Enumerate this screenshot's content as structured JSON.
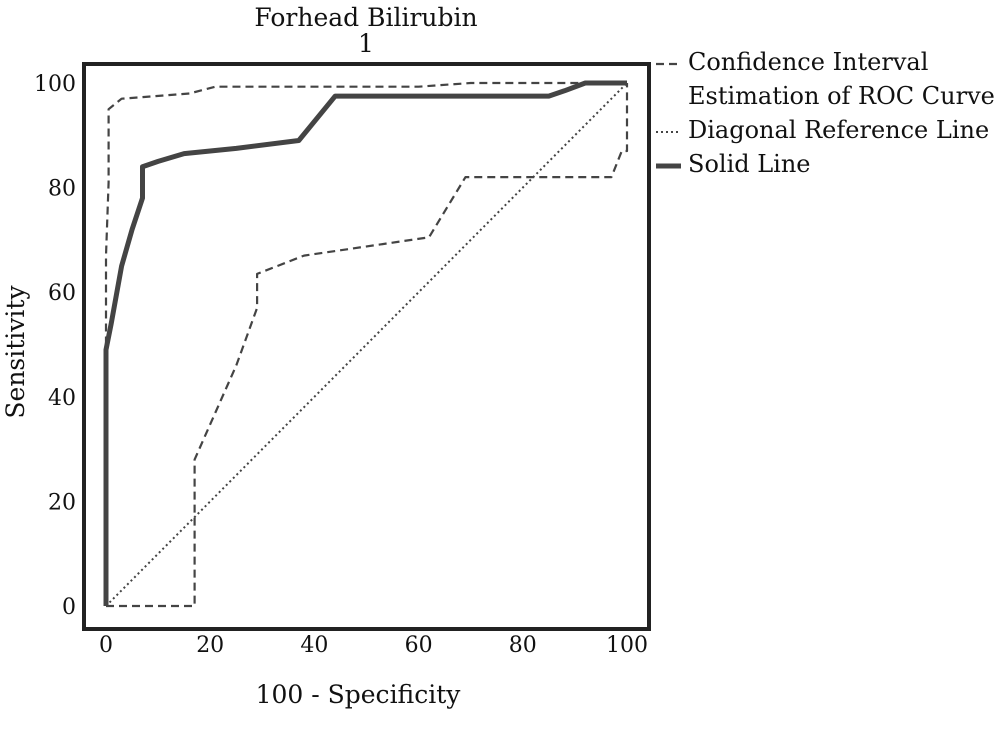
{
  "chart_data": {
    "type": "line",
    "title": "Forhead Bilirubin",
    "subtitle": "1",
    "xlabel": "100 - Specificity",
    "ylabel": "Sensitivity",
    "xlim": [
      0,
      100
    ],
    "ylim": [
      0,
      100
    ],
    "x_ticks": [
      0,
      20,
      40,
      60,
      80,
      100
    ],
    "y_ticks": [
      0,
      20,
      40,
      60,
      80,
      100
    ],
    "x_tick_labels": [
      "0",
      "20",
      "40",
      "60",
      "80",
      "100"
    ],
    "y_tick_labels": [
      "0",
      "20",
      "40",
      "60",
      "80",
      "100"
    ],
    "grid": false,
    "legend_position": "right",
    "series": [
      {
        "name": "Solid Line",
        "style": "solid",
        "points": [
          [
            0,
            0
          ],
          [
            0,
            49
          ],
          [
            1,
            54
          ],
          [
            3,
            65
          ],
          [
            5,
            72
          ],
          [
            7,
            78
          ],
          [
            7,
            84
          ],
          [
            10,
            85
          ],
          [
            15,
            86.5
          ],
          [
            25,
            87.5
          ],
          [
            37,
            89
          ],
          [
            44,
            97.5
          ],
          [
            70,
            97.5
          ],
          [
            85,
            97.5
          ],
          [
            88,
            98.5
          ],
          [
            92,
            100
          ],
          [
            100,
            100
          ]
        ]
      },
      {
        "name": "Confidence Interval Estimation of ROC Curve",
        "style": "dashed",
        "points": [
          [
            0,
            50
          ],
          [
            0,
            67
          ],
          [
            0.5,
            81
          ],
          [
            0.5,
            95
          ],
          [
            3,
            97
          ],
          [
            16,
            98
          ],
          [
            21,
            99.3
          ],
          [
            60,
            99.3
          ],
          [
            70,
            100
          ],
          [
            100,
            100
          ]
        ]
      },
      {
        "name": "Confidence Interval Estimation of ROC Curve",
        "style": "dashed",
        "points": [
          [
            0,
            0
          ],
          [
            17,
            0
          ],
          [
            17,
            28
          ],
          [
            21,
            37
          ],
          [
            25,
            46
          ],
          [
            29,
            57
          ],
          [
            29,
            63.5
          ],
          [
            38,
            67
          ],
          [
            62,
            70.5
          ],
          [
            69,
            82
          ],
          [
            97,
            82
          ],
          [
            99,
            87
          ],
          [
            100,
            87
          ],
          [
            100,
            100
          ]
        ]
      },
      {
        "name": "Diagonal Reference Line",
        "style": "dotted",
        "points": [
          [
            0,
            0
          ],
          [
            100,
            100
          ]
        ]
      }
    ],
    "legend": [
      {
        "label_lines": [
          "Confidence Interval",
          "Estimation of ROC Curve"
        ],
        "style": "dashed"
      },
      {
        "label_lines": [
          "Diagonal Reference Line"
        ],
        "style": "dotted"
      },
      {
        "label_lines": [
          "Solid Line"
        ],
        "style": "solid"
      }
    ],
    "colors": {
      "line": "#444444",
      "frame": "#222222",
      "text": "#111111"
    }
  }
}
